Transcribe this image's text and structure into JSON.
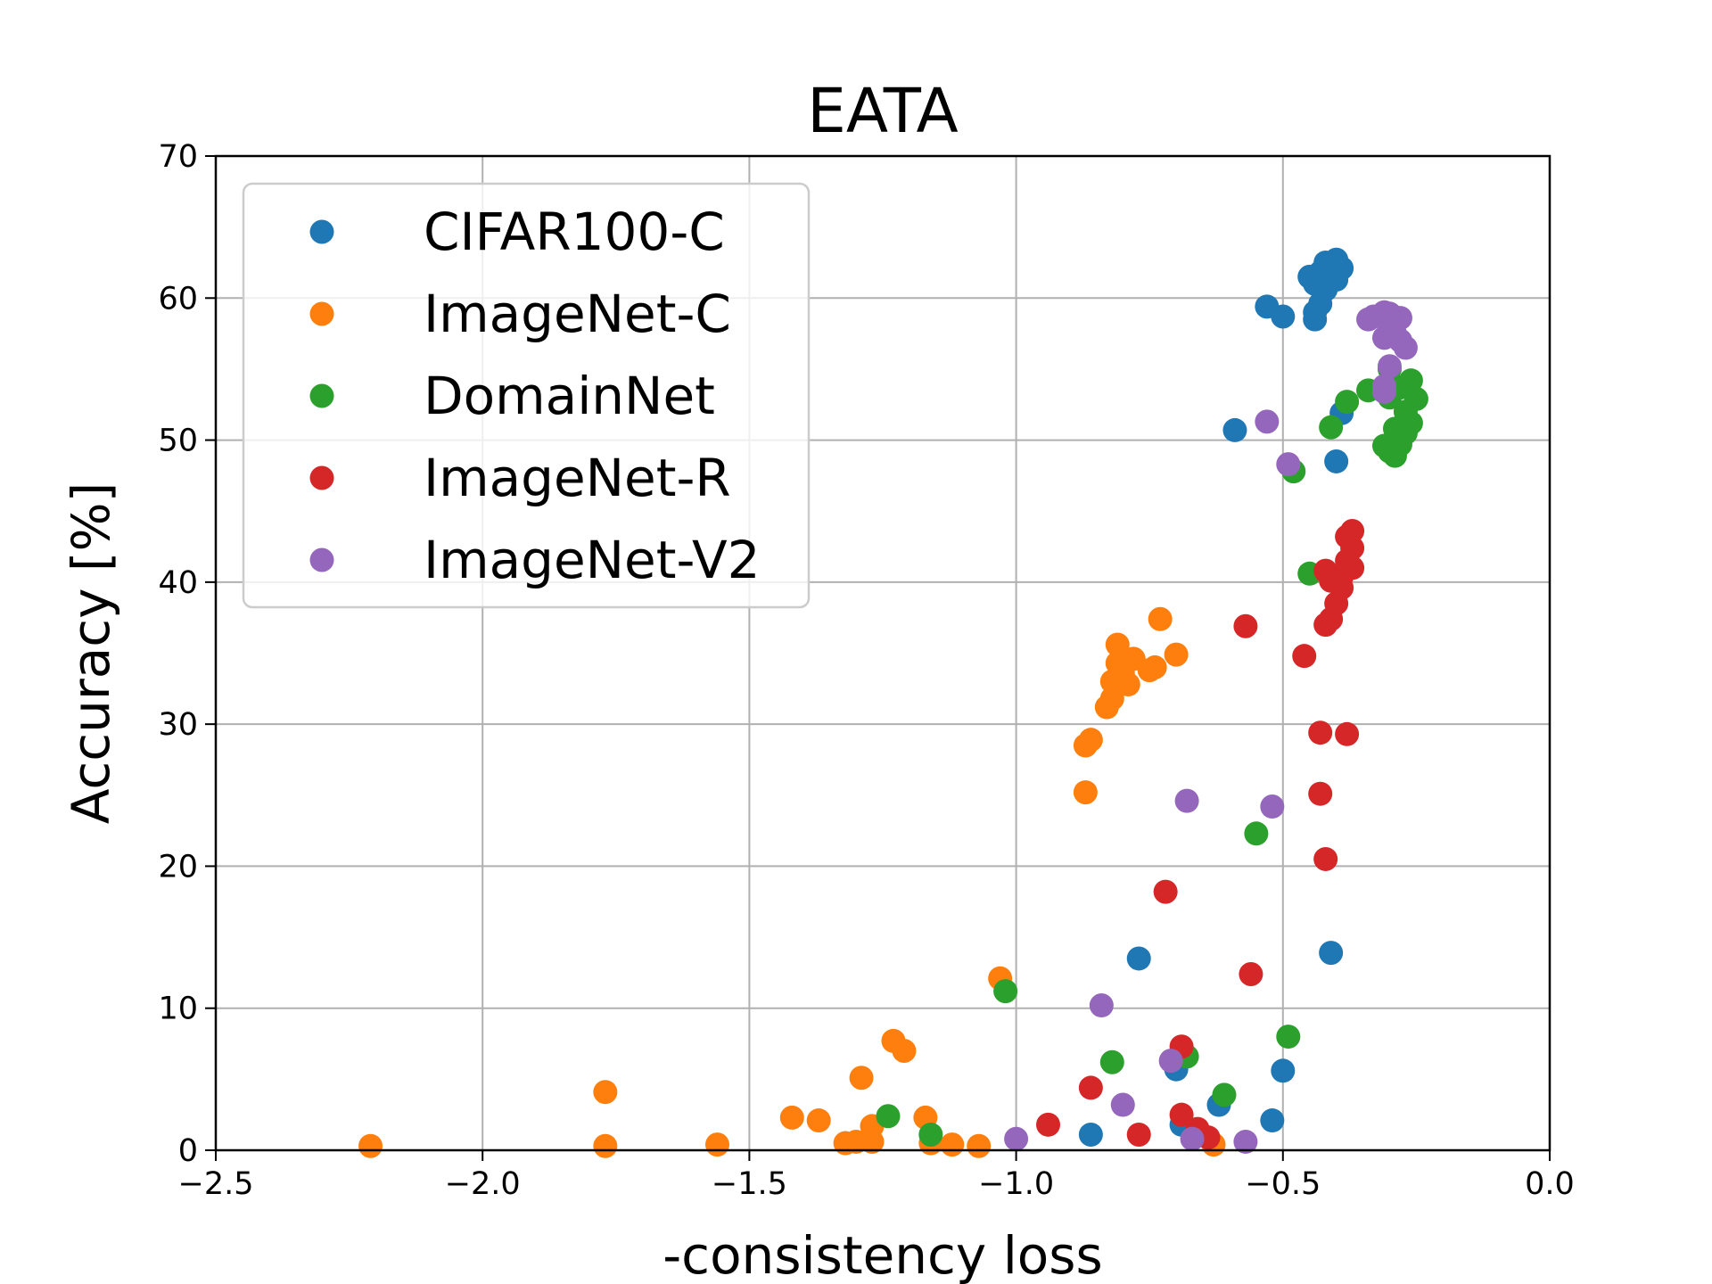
{
  "chart_data": {
    "type": "scatter",
    "title": "EATA",
    "xlabel": "-consistency loss",
    "ylabel": "Accuracy [%]",
    "xlim": [
      -2.5,
      0.0
    ],
    "ylim": [
      0,
      70
    ],
    "xticks": [
      -2.5,
      -2.0,
      -1.5,
      -1.0,
      -0.5,
      0.0
    ],
    "xtick_labels": [
      "−2.5",
      "−2.0",
      "−1.5",
      "−1.0",
      "−0.5",
      "0.0"
    ],
    "yticks": [
      0,
      10,
      20,
      30,
      40,
      50,
      60,
      70
    ],
    "ytick_labels": [
      "0",
      "10",
      "20",
      "30",
      "40",
      "50",
      "60",
      "70"
    ],
    "grid": true,
    "legend_position": "upper-left",
    "series": [
      {
        "name": "CIFAR100-C",
        "color": "#1f77b4",
        "points": [
          [
            -0.42,
            62.5
          ],
          [
            -0.4,
            62.7
          ],
          [
            -0.41,
            62.3
          ],
          [
            -0.43,
            61.8
          ],
          [
            -0.44,
            61.4
          ],
          [
            -0.45,
            61.5
          ],
          [
            -0.41,
            61.9
          ],
          [
            -0.42,
            61.2
          ],
          [
            -0.39,
            62.1
          ],
          [
            -0.43,
            60.9
          ],
          [
            -0.44,
            61.0
          ],
          [
            -0.4,
            61.3
          ],
          [
            -0.42,
            60.6
          ],
          [
            -0.43,
            59.6
          ],
          [
            -0.44,
            59.0
          ],
          [
            -0.44,
            58.5
          ],
          [
            -0.53,
            59.4
          ],
          [
            -0.5,
            58.7
          ],
          [
            -0.59,
            50.7
          ],
          [
            -0.39,
            51.9
          ],
          [
            -0.4,
            48.5
          ],
          [
            -0.41,
            13.9
          ],
          [
            -0.77,
            13.5
          ],
          [
            -0.7,
            5.7
          ],
          [
            -0.5,
            5.6
          ],
          [
            -0.62,
            3.2
          ],
          [
            -0.52,
            2.1
          ],
          [
            -0.69,
            1.8
          ],
          [
            -0.86,
            1.1
          ]
        ]
      },
      {
        "name": "ImageNet-C",
        "color": "#ff7f0e",
        "points": [
          [
            -0.73,
            37.4
          ],
          [
            -0.81,
            35.6
          ],
          [
            -0.81,
            34.3
          ],
          [
            -0.8,
            33.6
          ],
          [
            -0.82,
            33.0
          ],
          [
            -0.79,
            32.8
          ],
          [
            -0.82,
            31.8
          ],
          [
            -0.78,
            34.6
          ],
          [
            -0.75,
            33.8
          ],
          [
            -0.74,
            34.0
          ],
          [
            -0.7,
            34.9
          ],
          [
            -0.83,
            31.2
          ],
          [
            -0.86,
            28.9
          ],
          [
            -0.87,
            28.5
          ],
          [
            -0.87,
            25.2
          ],
          [
            -1.03,
            12.1
          ],
          [
            -1.23,
            7.7
          ],
          [
            -1.21,
            7.0
          ],
          [
            -1.29,
            5.1
          ],
          [
            -1.77,
            4.1
          ],
          [
            -1.42,
            2.3
          ],
          [
            -1.37,
            2.1
          ],
          [
            -1.27,
            1.7
          ],
          [
            -1.17,
            2.3
          ],
          [
            -1.3,
            0.6
          ],
          [
            -1.32,
            0.5
          ],
          [
            -1.27,
            0.6
          ],
          [
            -1.16,
            0.5
          ],
          [
            -1.12,
            0.4
          ],
          [
            -1.07,
            0.3
          ],
          [
            -1.56,
            0.4
          ],
          [
            -1.77,
            0.3
          ],
          [
            -2.21,
            0.3
          ],
          [
            -0.63,
            0.4
          ]
        ]
      },
      {
        "name": "DomainNet",
        "color": "#2ca02c",
        "points": [
          [
            -0.3,
            55.0
          ],
          [
            -0.26,
            54.2
          ],
          [
            -0.34,
            53.5
          ],
          [
            -0.38,
            52.7
          ],
          [
            -0.25,
            52.9
          ],
          [
            -0.27,
            52.0
          ],
          [
            -0.26,
            51.2
          ],
          [
            -0.27,
            50.5
          ],
          [
            -0.29,
            50.8
          ],
          [
            -0.31,
            49.6
          ],
          [
            -0.28,
            49.7
          ],
          [
            -0.29,
            48.9
          ],
          [
            -0.3,
            49.2
          ],
          [
            -0.41,
            50.9
          ],
          [
            -0.48,
            47.8
          ],
          [
            -0.45,
            40.6
          ],
          [
            -0.55,
            22.3
          ],
          [
            -1.02,
            11.2
          ],
          [
            -0.49,
            8.0
          ],
          [
            -0.82,
            6.2
          ],
          [
            -0.68,
            6.6
          ],
          [
            -0.61,
            3.9
          ],
          [
            -1.24,
            2.4
          ],
          [
            -1.16,
            1.1
          ],
          [
            -0.3,
            53.0
          ],
          [
            -0.28,
            53.7
          ]
        ]
      },
      {
        "name": "ImageNet-R",
        "color": "#d62728",
        "points": [
          [
            -0.37,
            43.6
          ],
          [
            -0.38,
            43.2
          ],
          [
            -0.37,
            42.4
          ],
          [
            -0.38,
            41.5
          ],
          [
            -0.37,
            41.0
          ],
          [
            -0.39,
            40.4
          ],
          [
            -0.42,
            40.8
          ],
          [
            -0.41,
            40.1
          ],
          [
            -0.39,
            39.6
          ],
          [
            -0.4,
            38.5
          ],
          [
            -0.41,
            37.4
          ],
          [
            -0.42,
            37.0
          ],
          [
            -0.57,
            36.9
          ],
          [
            -0.46,
            34.8
          ],
          [
            -0.43,
            29.4
          ],
          [
            -0.38,
            29.3
          ],
          [
            -0.43,
            25.1
          ],
          [
            -0.42,
            20.5
          ],
          [
            -0.72,
            18.2
          ],
          [
            -0.56,
            12.4
          ],
          [
            -0.69,
            7.3
          ],
          [
            -0.86,
            4.4
          ],
          [
            -0.69,
            2.5
          ],
          [
            -0.94,
            1.8
          ],
          [
            -0.66,
            1.5
          ],
          [
            -0.77,
            1.1
          ],
          [
            -0.64,
            0.9
          ]
        ]
      },
      {
        "name": "ImageNet-V2",
        "color": "#9467bd",
        "points": [
          [
            -0.33,
            58.7
          ],
          [
            -0.34,
            58.5
          ],
          [
            -0.31,
            59.0
          ],
          [
            -0.3,
            58.9
          ],
          [
            -0.28,
            58.6
          ],
          [
            -0.3,
            57.9
          ],
          [
            -0.29,
            57.5
          ],
          [
            -0.31,
            57.2
          ],
          [
            -0.28,
            57.0
          ],
          [
            -0.27,
            56.5
          ],
          [
            -0.3,
            55.2
          ],
          [
            -0.31,
            53.8
          ],
          [
            -0.31,
            53.4
          ],
          [
            -0.53,
            51.3
          ],
          [
            -0.49,
            48.3
          ],
          [
            -0.68,
            24.6
          ],
          [
            -0.52,
            24.2
          ],
          [
            -0.84,
            10.2
          ],
          [
            -0.71,
            6.3
          ],
          [
            -0.8,
            3.2
          ],
          [
            -1.0,
            0.8
          ],
          [
            -0.67,
            0.8
          ],
          [
            -0.57,
            0.6
          ]
        ]
      }
    ]
  }
}
